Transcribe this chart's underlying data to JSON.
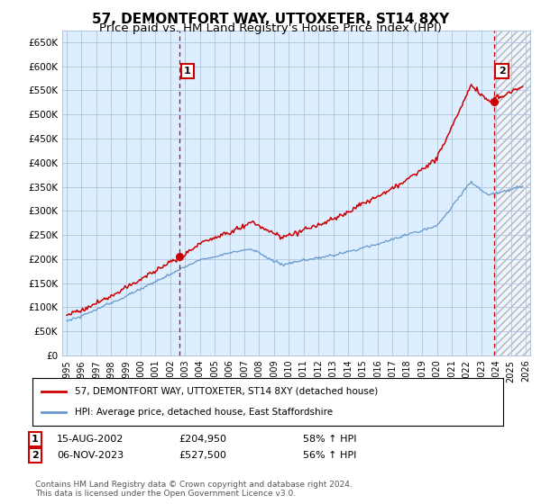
{
  "title": "57, DEMONTFORT WAY, UTTOXETER, ST14 8XY",
  "subtitle": "Price paid vs. HM Land Registry's House Price Index (HPI)",
  "ylim": [
    0,
    675000
  ],
  "yticks": [
    0,
    50000,
    100000,
    150000,
    200000,
    250000,
    300000,
    350000,
    400000,
    450000,
    500000,
    550000,
    600000,
    650000
  ],
  "ytick_labels": [
    "£0",
    "£50K",
    "£100K",
    "£150K",
    "£200K",
    "£250K",
    "£300K",
    "£350K",
    "£400K",
    "£450K",
    "£500K",
    "£550K",
    "£600K",
    "£650K"
  ],
  "xlim_start": 1994.7,
  "xlim_end": 2026.3,
  "xtick_years": [
    1995,
    1996,
    1997,
    1998,
    1999,
    2000,
    2001,
    2002,
    2003,
    2004,
    2005,
    2006,
    2007,
    2008,
    2009,
    2010,
    2011,
    2012,
    2013,
    2014,
    2015,
    2016,
    2017,
    2018,
    2019,
    2020,
    2021,
    2022,
    2023,
    2024,
    2025,
    2026
  ],
  "legend_line1": "57, DEMONTFORT WAY, UTTOXETER, ST14 8XY (detached house)",
  "legend_line2": "HPI: Average price, detached house, East Staffordshire",
  "sale1_date": "15-AUG-2002",
  "sale1_price": "£204,950",
  "sale1_hpi": "58% ↑ HPI",
  "sale1_year": 2002.62,
  "sale1_value": 204950,
  "sale2_date": "06-NOV-2023",
  "sale2_price": "£527,500",
  "sale2_hpi": "56% ↑ HPI",
  "sale2_year": 2023.85,
  "sale2_value": 527500,
  "red_color": "#cc0000",
  "blue_color": "#6699cc",
  "plot_bg_color": "#ddeeff",
  "background_color": "#ffffff",
  "grid_color": "#b0c4de",
  "footer_text": "Contains HM Land Registry data © Crown copyright and database right 2024.\nThis data is licensed under the Open Government Licence v3.0.",
  "title_fontsize": 11,
  "subtitle_fontsize": 9.5
}
